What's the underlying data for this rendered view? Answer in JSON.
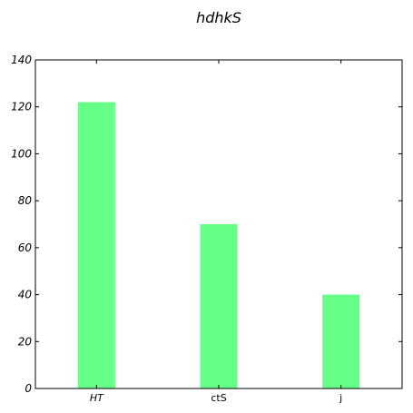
{
  "chart_data": {
    "type": "bar",
    "title": "hdhkS",
    "xlabel": "",
    "ylabel": "",
    "categories": [
      "HT",
      "ctS",
      "j"
    ],
    "values": [
      122,
      70,
      40
    ],
    "ylim": [
      0,
      140
    ],
    "yticks": [
      0,
      20,
      40,
      60,
      80,
      100,
      120,
      140
    ],
    "bar_color": "#66ff88",
    "grid": false,
    "legend": "none"
  }
}
